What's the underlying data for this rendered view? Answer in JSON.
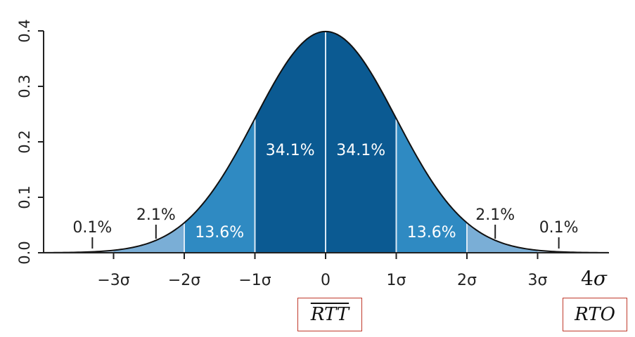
{
  "chart_data": {
    "type": "area",
    "distribution": "standard normal",
    "x_range": [
      -4,
      4
    ],
    "ylim": [
      0,
      0.4
    ],
    "y_ticks": [
      "0.0",
      "0.1",
      "0.2",
      "0.3",
      "0.4"
    ],
    "x_ticks": [
      {
        "value": -3,
        "label": "−3σ"
      },
      {
        "value": -2,
        "label": "−2σ"
      },
      {
        "value": -1,
        "label": "−1σ"
      },
      {
        "value": 0,
        "label": "0"
      },
      {
        "value": 1,
        "label": "1σ"
      },
      {
        "value": 2,
        "label": "2σ"
      },
      {
        "value": 3,
        "label": "3σ"
      }
    ],
    "bands": [
      {
        "from": -3,
        "to": -2,
        "color": "#7aaed6"
      },
      {
        "from": -2,
        "to": -1,
        "color": "#2f8ac2"
      },
      {
        "from": -1,
        "to": 0,
        "color": "#0b5a92"
      },
      {
        "from": 0,
        "to": 1,
        "color": "#0b5a92"
      },
      {
        "from": 1,
        "to": 2,
        "color": "#2f8ac2"
      },
      {
        "from": 2,
        "to": 3,
        "color": "#7aaed6"
      }
    ],
    "percentages": [
      {
        "label": "0.1%",
        "center": -3.3,
        "style": "light"
      },
      {
        "label": "2.1%",
        "center": -2.4,
        "style": "light"
      },
      {
        "label": "13.6%",
        "center": -1.5,
        "style": "dark"
      },
      {
        "label": "34.1%",
        "center": -0.5,
        "style": "dark"
      },
      {
        "label": "34.1%",
        "center": 0.5,
        "style": "dark"
      },
      {
        "label": "13.6%",
        "center": 1.5,
        "style": "dark"
      },
      {
        "label": "2.1%",
        "center": 2.4,
        "style": "light"
      },
      {
        "label": "0.1%",
        "center": 3.3,
        "style": "light"
      }
    ],
    "extra_x_label": {
      "number": "4",
      "symbol": "σ"
    },
    "annotations": {
      "mean_label": "RTT",
      "timeout_label": "RTO"
    },
    "curve_color": "#111111",
    "tail_color": "#b9d3ea",
    "divider_color": "#dbe9f5"
  }
}
